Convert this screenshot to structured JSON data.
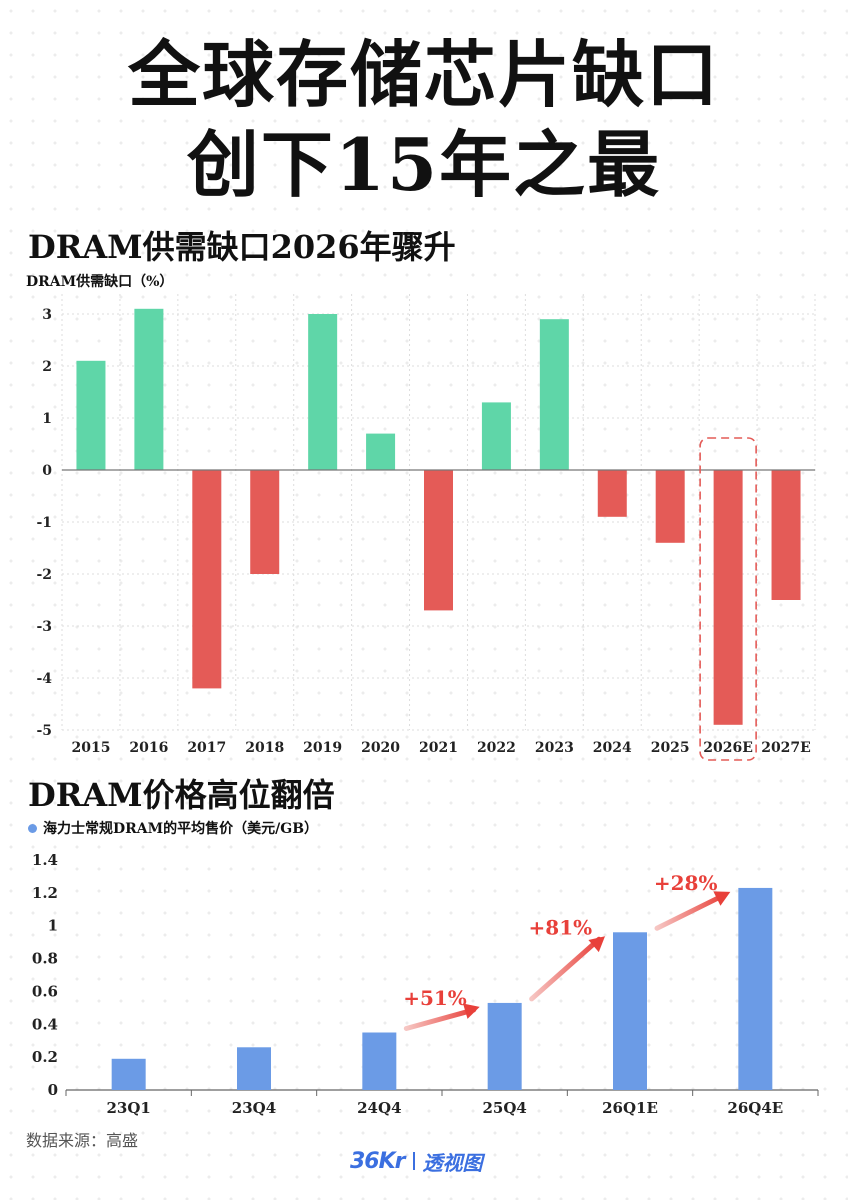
{
  "header": {
    "title_line1": "全球存储芯片缺口",
    "title_line2": "创下15年之最"
  },
  "section1": {
    "title": "DRAM供需缺口2026年骤升",
    "unit": "DRAM供需缺口（%）"
  },
  "section2": {
    "title": "DRAM价格高位翻倍"
  },
  "footer": {
    "source": "数据来源：高盛",
    "brand_36kr": "36Kr",
    "brand_name": "透视图"
  },
  "colors": {
    "positive": "#5fd6a8",
    "negative": "#e45b57",
    "price_bar": "#6b9be6",
    "annotation": "#e8403a"
  },
  "chart_data": [
    {
      "type": "bar",
      "ylabel": "DRAM供需缺口（%）",
      "categories": [
        "2015",
        "2016",
        "2017",
        "2018",
        "2019",
        "2020",
        "2021",
        "2022",
        "2023",
        "2024",
        "2025",
        "2026E",
        "2027E"
      ],
      "values": [
        2.1,
        3.1,
        -4.2,
        -2.0,
        3.0,
        0.7,
        -2.7,
        1.3,
        2.9,
        -0.9,
        -1.4,
        -4.9,
        -2.5
      ],
      "ylim": [
        -5.5,
        3.3
      ],
      "yticks": [
        3,
        2,
        1,
        0,
        -1,
        -2,
        -3,
        -4,
        -5
      ],
      "grid": true,
      "highlight_category": "2026E"
    },
    {
      "type": "bar",
      "series": [
        {
          "name": "海力士常规DRAM的平均售价（美元/GB）",
          "values": [
            0.19,
            0.26,
            0.35,
            0.53,
            0.96,
            1.23
          ]
        }
      ],
      "categories": [
        "23Q1",
        "23Q4",
        "24Q4",
        "25Q4",
        "26Q1E",
        "26Q4E"
      ],
      "ylim": [
        0,
        1.4
      ],
      "yticks": [
        0,
        0.2,
        0.4,
        0.6,
        0.8,
        1,
        1.2,
        1.4
      ],
      "grid": false,
      "legend": "top-left",
      "annotations": [
        {
          "text": "+51%",
          "from": "24Q4",
          "to": "25Q4"
        },
        {
          "text": "+81%",
          "from": "25Q4",
          "to": "26Q1E"
        },
        {
          "text": "+28%",
          "from": "26Q1E",
          "to": "26Q4E"
        }
      ]
    }
  ]
}
